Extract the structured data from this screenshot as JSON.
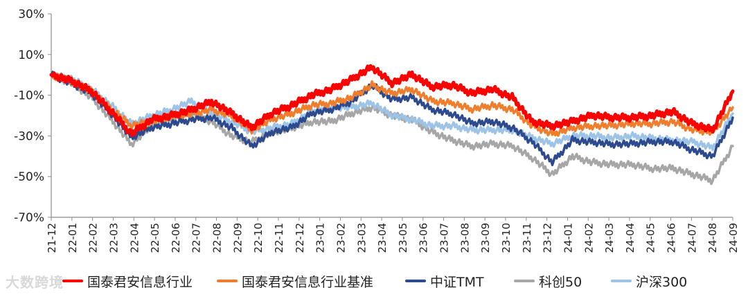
{
  "chart_data": {
    "type": "line",
    "title": "",
    "xlabel": "",
    "ylabel": "",
    "ylim": [
      -70,
      30
    ],
    "y_ticks": [
      30,
      10,
      -10,
      -30,
      -50,
      -70
    ],
    "y_tick_labels": [
      "30%",
      "10%",
      "-10%",
      "-30%",
      "-50%",
      "-70%"
    ],
    "x_tick_labels": [
      "21-12",
      "22-01",
      "22-02",
      "22-03",
      "22-04",
      "22-05",
      "22-06",
      "22-07",
      "22-08",
      "22-09",
      "22-10",
      "22-11",
      "22-12",
      "23-01",
      "23-02",
      "23-03",
      "23-04",
      "23-05",
      "23-06",
      "23-07",
      "23-08",
      "23-09",
      "23-10",
      "23-11",
      "23-12",
      "24-01",
      "24-02",
      "24-03",
      "24-04",
      "24-05",
      "24-06",
      "24-07",
      "24-08",
      "24-09"
    ],
    "grid": false,
    "legend_position": "bottom",
    "series": [
      {
        "name": "国泰君安信息行业",
        "color": "#ff0000",
        "values": [
          0,
          -3,
          -8,
          -18,
          -29,
          -22,
          -20,
          -17,
          -13,
          -19,
          -26,
          -19,
          -15,
          -10,
          -7,
          -2,
          4,
          -4,
          0,
          -6,
          -5,
          -9,
          -7,
          -11,
          -23,
          -25,
          -23,
          -20,
          -21,
          -21,
          -20,
          -18,
          -24,
          -27,
          -8
        ]
      },
      {
        "name": "国泰君安信息行业基准",
        "color": "#f07d2c",
        "values": [
          0,
          -3,
          -8,
          -17,
          -25,
          -23,
          -20,
          -19,
          -17,
          -20,
          -27,
          -22,
          -19,
          -15,
          -14,
          -11,
          -5,
          -9,
          -7,
          -13,
          -14,
          -17,
          -15,
          -17,
          -25,
          -29,
          -26,
          -25,
          -25,
          -24,
          -24,
          -23,
          -27,
          -28,
          -16
        ]
      },
      {
        "name": "中证TMT",
        "color": "#2e4a8f",
        "values": [
          0,
          -4,
          -9,
          -19,
          -31,
          -26,
          -24,
          -22,
          -21,
          -26,
          -35,
          -28,
          -26,
          -19,
          -17,
          -13,
          -5,
          -12,
          -11,
          -17,
          -19,
          -24,
          -23,
          -26,
          -33,
          -43,
          -32,
          -33,
          -34,
          -34,
          -33,
          -33,
          -37,
          -40,
          -21
        ]
      },
      {
        "name": "科创50",
        "color": "#a6a6a6",
        "values": [
          0,
          -4,
          -11,
          -22,
          -34,
          -25,
          -22,
          -19,
          -23,
          -30,
          -33,
          -28,
          -26,
          -23,
          -23,
          -19,
          -16,
          -20,
          -22,
          -28,
          -32,
          -35,
          -34,
          -35,
          -41,
          -49,
          -40,
          -43,
          -44,
          -44,
          -46,
          -46,
          -49,
          -52,
          -35
        ]
      },
      {
        "name": "沪深300",
        "color": "#9dc3e6",
        "values": [
          0,
          -2,
          -7,
          -15,
          -24,
          -20,
          -17,
          -13,
          -19,
          -23,
          -28,
          -26,
          -24,
          -18,
          -16,
          -16,
          -14,
          -20,
          -22,
          -25,
          -25,
          -27,
          -27,
          -27,
          -31,
          -34,
          -30,
          -30,
          -31,
          -30,
          -31,
          -32,
          -33,
          -36,
          -19
        ]
      }
    ]
  },
  "watermark": "大数跨境"
}
